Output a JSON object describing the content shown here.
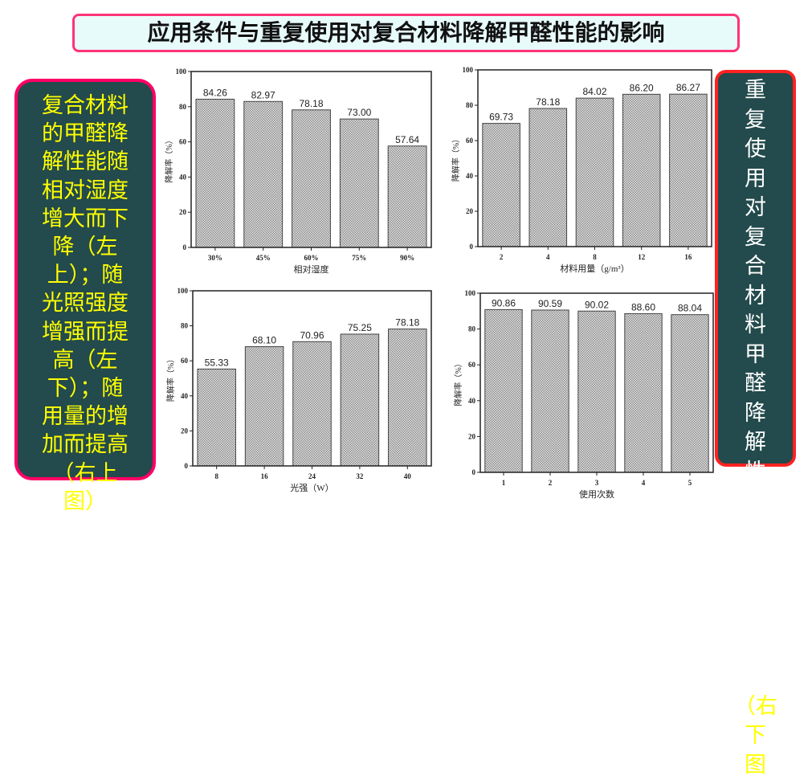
{
  "title": "应用条件与重复使用对复合材料降解甲醛性能的影响",
  "left_note": "复合材料的甲醛降解性能随相对湿度增大而下降（左上）；随光照强度增强而提高（左下）；随用量的增加而提高（右上图）",
  "right_note": "重复使用对复合材料甲醛降解性能没有显著影响",
  "right_note_ref": "（右下图",
  "colors": {
    "title_border": "#ff3377",
    "box_bg": "#234a4c",
    "left_border": "#ff0066",
    "right_border": "#ff2222",
    "note_text": "#ffff00"
  },
  "chart_data": [
    {
      "type": "bar",
      "xlabel": "相对湿度",
      "ylabel": "降解率（%）",
      "categories": [
        "30%",
        "45%",
        "60%",
        "75%",
        "90%"
      ],
      "values": [
        84.26,
        82.97,
        78.18,
        73.0,
        57.64
      ],
      "labels": [
        "84.26",
        "82.97",
        "78.18",
        "73.00",
        "57.64"
      ],
      "ylim": [
        0,
        100
      ],
      "yticks": [
        "0",
        "20",
        "40",
        "60",
        "80",
        "100"
      ],
      "grid": false
    },
    {
      "type": "bar",
      "xlabel": "材料用量（g/m³）",
      "ylabel": "降解率（%）",
      "categories": [
        "2",
        "4",
        "8",
        "12",
        "16"
      ],
      "values": [
        69.73,
        78.18,
        84.02,
        86.2,
        86.27
      ],
      "labels": [
        "69.73",
        "78.18",
        "84.02",
        "86.20",
        "86.27"
      ],
      "ylim": [
        0,
        100
      ],
      "yticks": [
        "0",
        "20",
        "40",
        "60",
        "80",
        "100"
      ],
      "grid": false
    },
    {
      "type": "bar",
      "xlabel": "光强（W）",
      "ylabel": "降解率（%）",
      "categories": [
        "8",
        "16",
        "24",
        "32",
        "40"
      ],
      "values": [
        55.33,
        68.1,
        70.96,
        75.25,
        78.18
      ],
      "labels": [
        "55.33",
        "68.10",
        "70.96",
        "75.25",
        "78.18"
      ],
      "ylim": [
        0,
        100
      ],
      "yticks": [
        "0",
        "20",
        "40",
        "60",
        "80",
        "100"
      ],
      "grid": false
    },
    {
      "type": "bar",
      "xlabel": "使用次数",
      "ylabel": "降解率（%）",
      "categories": [
        "1",
        "2",
        "3",
        "4",
        "5"
      ],
      "values": [
        90.86,
        90.59,
        90.02,
        88.6,
        88.04
      ],
      "labels": [
        "90.86",
        "90.59",
        "90.02",
        "88.60",
        "88.04"
      ],
      "ylim": [
        0,
        100
      ],
      "yticks": [
        "0",
        "20",
        "40",
        "60",
        "80",
        "100"
      ],
      "grid": false
    }
  ]
}
